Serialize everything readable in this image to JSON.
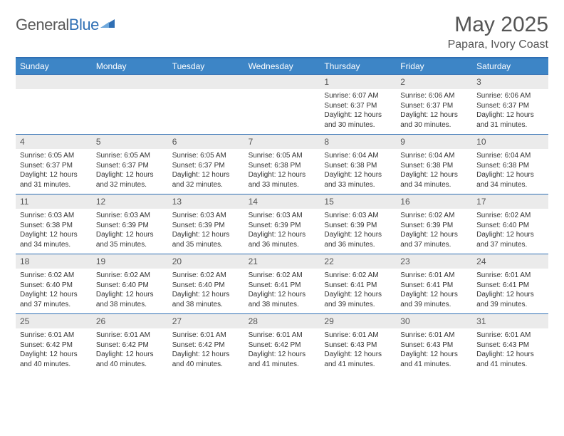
{
  "logo": {
    "word1": "General",
    "word2": "Blue",
    "text_color": "#5a5a5a",
    "blue_color": "#2f6fb4",
    "icon_color": "#2f6fb4"
  },
  "header": {
    "month_title": "May 2025",
    "location": "Papara, Ivory Coast",
    "title_color": "#555555",
    "title_fontsize": 30,
    "location_fontsize": 16
  },
  "calendar": {
    "header_bg": "#3d85c6",
    "header_text_color": "#ffffff",
    "border_color": "#2f6fb4",
    "daynum_bg": "#ebebeb",
    "daynum_color": "#555555",
    "cell_text_color": "#333333",
    "cell_fontsize": 10,
    "days_of_week": [
      "Sunday",
      "Monday",
      "Tuesday",
      "Wednesday",
      "Thursday",
      "Friday",
      "Saturday"
    ],
    "weeks": [
      {
        "nums": [
          "",
          "",
          "",
          "",
          "1",
          "2",
          "3"
        ],
        "cells": [
          {
            "sunrise": "",
            "sunset": "",
            "daylight": ""
          },
          {
            "sunrise": "",
            "sunset": "",
            "daylight": ""
          },
          {
            "sunrise": "",
            "sunset": "",
            "daylight": ""
          },
          {
            "sunrise": "",
            "sunset": "",
            "daylight": ""
          },
          {
            "sunrise": "Sunrise: 6:07 AM",
            "sunset": "Sunset: 6:37 PM",
            "daylight": "Daylight: 12 hours and 30 minutes."
          },
          {
            "sunrise": "Sunrise: 6:06 AM",
            "sunset": "Sunset: 6:37 PM",
            "daylight": "Daylight: 12 hours and 30 minutes."
          },
          {
            "sunrise": "Sunrise: 6:06 AM",
            "sunset": "Sunset: 6:37 PM",
            "daylight": "Daylight: 12 hours and 31 minutes."
          }
        ]
      },
      {
        "nums": [
          "4",
          "5",
          "6",
          "7",
          "8",
          "9",
          "10"
        ],
        "cells": [
          {
            "sunrise": "Sunrise: 6:05 AM",
            "sunset": "Sunset: 6:37 PM",
            "daylight": "Daylight: 12 hours and 31 minutes."
          },
          {
            "sunrise": "Sunrise: 6:05 AM",
            "sunset": "Sunset: 6:37 PM",
            "daylight": "Daylight: 12 hours and 32 minutes."
          },
          {
            "sunrise": "Sunrise: 6:05 AM",
            "sunset": "Sunset: 6:37 PM",
            "daylight": "Daylight: 12 hours and 32 minutes."
          },
          {
            "sunrise": "Sunrise: 6:05 AM",
            "sunset": "Sunset: 6:38 PM",
            "daylight": "Daylight: 12 hours and 33 minutes."
          },
          {
            "sunrise": "Sunrise: 6:04 AM",
            "sunset": "Sunset: 6:38 PM",
            "daylight": "Daylight: 12 hours and 33 minutes."
          },
          {
            "sunrise": "Sunrise: 6:04 AM",
            "sunset": "Sunset: 6:38 PM",
            "daylight": "Daylight: 12 hours and 34 minutes."
          },
          {
            "sunrise": "Sunrise: 6:04 AM",
            "sunset": "Sunset: 6:38 PM",
            "daylight": "Daylight: 12 hours and 34 minutes."
          }
        ]
      },
      {
        "nums": [
          "11",
          "12",
          "13",
          "14",
          "15",
          "16",
          "17"
        ],
        "cells": [
          {
            "sunrise": "Sunrise: 6:03 AM",
            "sunset": "Sunset: 6:38 PM",
            "daylight": "Daylight: 12 hours and 34 minutes."
          },
          {
            "sunrise": "Sunrise: 6:03 AM",
            "sunset": "Sunset: 6:39 PM",
            "daylight": "Daylight: 12 hours and 35 minutes."
          },
          {
            "sunrise": "Sunrise: 6:03 AM",
            "sunset": "Sunset: 6:39 PM",
            "daylight": "Daylight: 12 hours and 35 minutes."
          },
          {
            "sunrise": "Sunrise: 6:03 AM",
            "sunset": "Sunset: 6:39 PM",
            "daylight": "Daylight: 12 hours and 36 minutes."
          },
          {
            "sunrise": "Sunrise: 6:03 AM",
            "sunset": "Sunset: 6:39 PM",
            "daylight": "Daylight: 12 hours and 36 minutes."
          },
          {
            "sunrise": "Sunrise: 6:02 AM",
            "sunset": "Sunset: 6:39 PM",
            "daylight": "Daylight: 12 hours and 37 minutes."
          },
          {
            "sunrise": "Sunrise: 6:02 AM",
            "sunset": "Sunset: 6:40 PM",
            "daylight": "Daylight: 12 hours and 37 minutes."
          }
        ]
      },
      {
        "nums": [
          "18",
          "19",
          "20",
          "21",
          "22",
          "23",
          "24"
        ],
        "cells": [
          {
            "sunrise": "Sunrise: 6:02 AM",
            "sunset": "Sunset: 6:40 PM",
            "daylight": "Daylight: 12 hours and 37 minutes."
          },
          {
            "sunrise": "Sunrise: 6:02 AM",
            "sunset": "Sunset: 6:40 PM",
            "daylight": "Daylight: 12 hours and 38 minutes."
          },
          {
            "sunrise": "Sunrise: 6:02 AM",
            "sunset": "Sunset: 6:40 PM",
            "daylight": "Daylight: 12 hours and 38 minutes."
          },
          {
            "sunrise": "Sunrise: 6:02 AM",
            "sunset": "Sunset: 6:41 PM",
            "daylight": "Daylight: 12 hours and 38 minutes."
          },
          {
            "sunrise": "Sunrise: 6:02 AM",
            "sunset": "Sunset: 6:41 PM",
            "daylight": "Daylight: 12 hours and 39 minutes."
          },
          {
            "sunrise": "Sunrise: 6:01 AM",
            "sunset": "Sunset: 6:41 PM",
            "daylight": "Daylight: 12 hours and 39 minutes."
          },
          {
            "sunrise": "Sunrise: 6:01 AM",
            "sunset": "Sunset: 6:41 PM",
            "daylight": "Daylight: 12 hours and 39 minutes."
          }
        ]
      },
      {
        "nums": [
          "25",
          "26",
          "27",
          "28",
          "29",
          "30",
          "31"
        ],
        "cells": [
          {
            "sunrise": "Sunrise: 6:01 AM",
            "sunset": "Sunset: 6:42 PM",
            "daylight": "Daylight: 12 hours and 40 minutes."
          },
          {
            "sunrise": "Sunrise: 6:01 AM",
            "sunset": "Sunset: 6:42 PM",
            "daylight": "Daylight: 12 hours and 40 minutes."
          },
          {
            "sunrise": "Sunrise: 6:01 AM",
            "sunset": "Sunset: 6:42 PM",
            "daylight": "Daylight: 12 hours and 40 minutes."
          },
          {
            "sunrise": "Sunrise: 6:01 AM",
            "sunset": "Sunset: 6:42 PM",
            "daylight": "Daylight: 12 hours and 41 minutes."
          },
          {
            "sunrise": "Sunrise: 6:01 AM",
            "sunset": "Sunset: 6:43 PM",
            "daylight": "Daylight: 12 hours and 41 minutes."
          },
          {
            "sunrise": "Sunrise: 6:01 AM",
            "sunset": "Sunset: 6:43 PM",
            "daylight": "Daylight: 12 hours and 41 minutes."
          },
          {
            "sunrise": "Sunrise: 6:01 AM",
            "sunset": "Sunset: 6:43 PM",
            "daylight": "Daylight: 12 hours and 41 minutes."
          }
        ]
      }
    ]
  }
}
